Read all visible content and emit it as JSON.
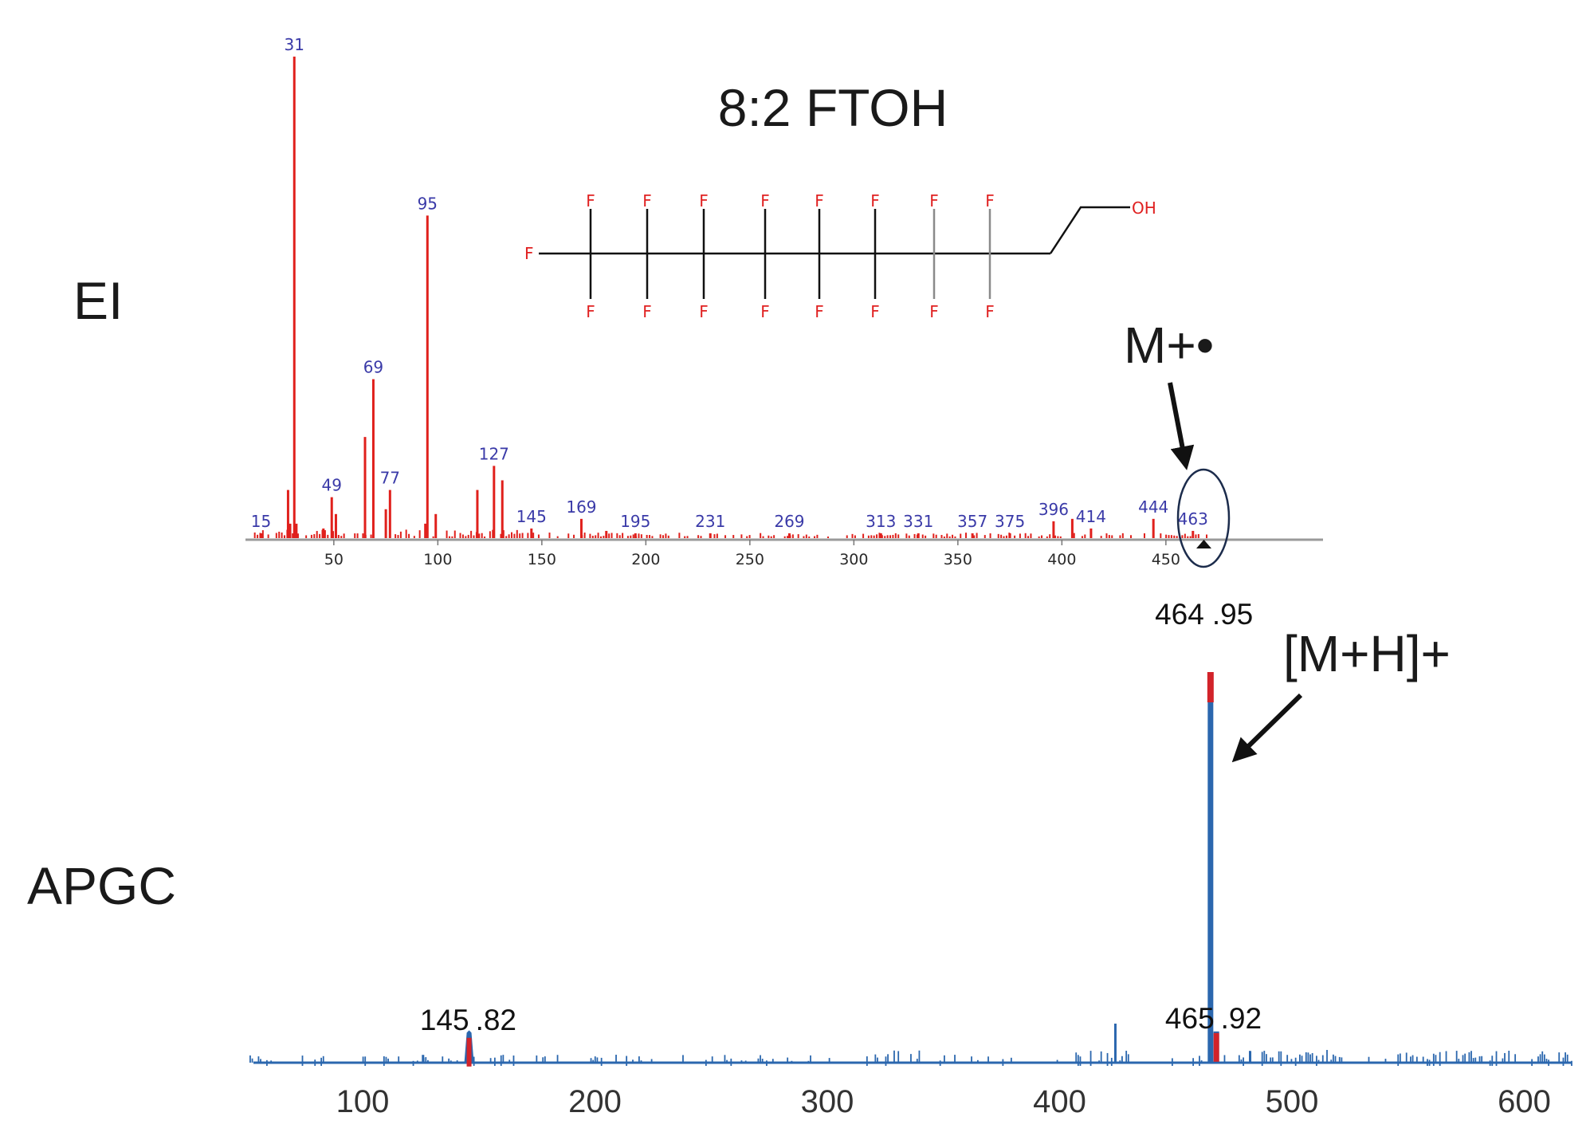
{
  "compound": {
    "title": "8:2 FTOH",
    "fluorine_label": "F",
    "hydroxyl_label": "OH"
  },
  "panels": {
    "ei_label": "EI",
    "apgc_label": "APGC",
    "ei_annotation": "M+•",
    "apgc_annotation": "[M+H]+"
  },
  "chart_data": [
    {
      "type": "bar",
      "panel": "EI",
      "color": "#e0201c",
      "xlim": [
        0,
        520
      ],
      "x_ticks": [
        50,
        100,
        150,
        200,
        250,
        300,
        350,
        400,
        450
      ],
      "labeled_peaks": [
        {
          "mz": 15,
          "label": "15",
          "intensity": 1
        },
        {
          "mz": 31,
          "label": "31",
          "intensity": 100
        },
        {
          "mz": 49,
          "label": "49",
          "intensity": 8.5
        },
        {
          "mz": 69,
          "label": "69",
          "intensity": 33
        },
        {
          "mz": 77,
          "label": "77",
          "intensity": 10
        },
        {
          "mz": 95,
          "label": "95",
          "intensity": 67
        },
        {
          "mz": 127,
          "label": "127",
          "intensity": 15
        },
        {
          "mz": 145,
          "label": "145",
          "intensity": 2
        },
        {
          "mz": 169,
          "label": "169",
          "intensity": 4
        },
        {
          "mz": 195,
          "label": "195",
          "intensity": 1
        },
        {
          "mz": 231,
          "label": "231",
          "intensity": 1
        },
        {
          "mz": 269,
          "label": "269",
          "intensity": 1
        },
        {
          "mz": 313,
          "label": "313",
          "intensity": 1
        },
        {
          "mz": 331,
          "label": "331",
          "intensity": 1
        },
        {
          "mz": 357,
          "label": "357",
          "intensity": 1
        },
        {
          "mz": 375,
          "label": "375",
          "intensity": 1
        },
        {
          "mz": 396,
          "label": "396",
          "intensity": 3.5
        },
        {
          "mz": 414,
          "label": "414",
          "intensity": 2
        },
        {
          "mz": 444,
          "label": "444",
          "intensity": 4
        },
        {
          "mz": 463,
          "label": "463",
          "intensity": 1.5
        }
      ],
      "minor_peaks": [
        {
          "mz": 28,
          "intensity": 10
        },
        {
          "mz": 29,
          "intensity": 3
        },
        {
          "mz": 32,
          "intensity": 3
        },
        {
          "mz": 45,
          "intensity": 2
        },
        {
          "mz": 51,
          "intensity": 5
        },
        {
          "mz": 65,
          "intensity": 21
        },
        {
          "mz": 75,
          "intensity": 6
        },
        {
          "mz": 94,
          "intensity": 3
        },
        {
          "mz": 99,
          "intensity": 5
        },
        {
          "mz": 119,
          "intensity": 10
        },
        {
          "mz": 131,
          "intensity": 12
        },
        {
          "mz": 181,
          "intensity": 1.5
        },
        {
          "mz": 405,
          "intensity": 4
        }
      ]
    },
    {
      "type": "line",
      "panel": "APGC",
      "color": "#2b67ae",
      "xlim": [
        45,
        623
      ],
      "x_ticks": [
        100,
        200,
        300,
        400,
        500,
        600
      ],
      "annotated_peaks": [
        {
          "mz": 145.82,
          "label_left": "145",
          "label_right": ".82",
          "intensity": 8
        },
        {
          "mz": 464.95,
          "label_left": "464",
          "label_right": ".95",
          "intensity": 100
        },
        {
          "mz": 465.92,
          "label_left": "465",
          "label_right": ".92",
          "intensity": 8
        }
      ],
      "other_peaks": [
        {
          "mz": 126,
          "intensity": 2
        },
        {
          "mz": 424,
          "intensity": 10
        },
        {
          "mz": 482,
          "intensity": 3
        }
      ]
    }
  ]
}
